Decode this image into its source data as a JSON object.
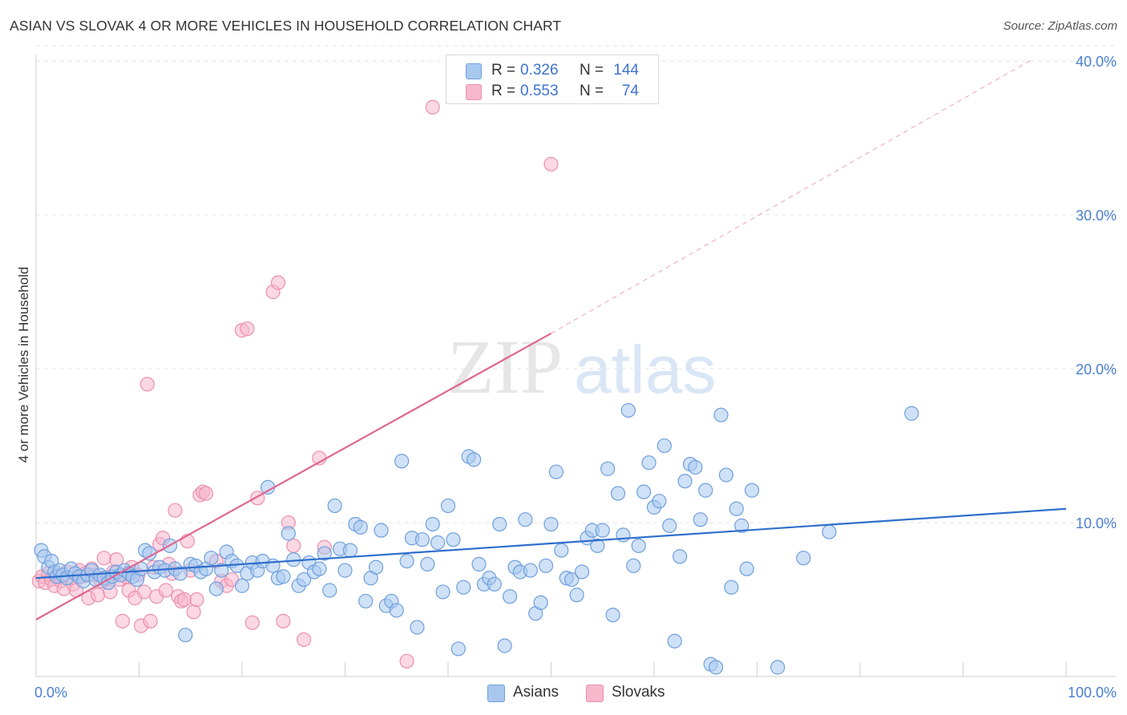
{
  "title": "ASIAN VS SLOVAK 4 OR MORE VEHICLES IN HOUSEHOLD CORRELATION CHART",
  "source": "Source: ZipAtlas.com",
  "watermark": {
    "zip": "ZIP",
    "atlas": "atlas"
  },
  "legend_top": [
    {
      "r_label": "R =",
      "r_value": "0.326",
      "n_label": "N =",
      "n_value": "144"
    },
    {
      "r_label": "R =",
      "r_value": "0.553",
      "n_label": "N =",
      "n_value": "74"
    }
  ],
  "legend_bottom": [
    "Asians",
    "Slovaks"
  ],
  "colors": {
    "asian_fill": "#a8c8f0",
    "asian_stroke": "#6f9fdc",
    "asian_line": "#2f6fcc",
    "slovak_fill": "#f7b8cc",
    "slovak_stroke": "#ec8fae",
    "slovak_line": "#e0668f",
    "tick_label": "#4a7fd0",
    "grid": "#e3e3e3"
  },
  "chart_data": {
    "type": "scatter",
    "title": "ASIAN VS SLOVAK 4 OR MORE VEHICLES IN HOUSEHOLD CORRELATION CHART",
    "xlabel": "",
    "ylabel": "4 or more Vehicles in Household",
    "xlim": [
      0,
      100
    ],
    "ylim": [
      0,
      41
    ],
    "x_tick_labels": [
      "0.0%",
      "100.0%"
    ],
    "y_ticks": [
      10,
      20,
      30,
      40
    ],
    "y_tick_labels": [
      "10.0%",
      "20.0%",
      "30.0%",
      "40.0%"
    ],
    "grid": "horizontal-dashed",
    "legend_position": "top-center",
    "series": [
      {
        "name": "Asians",
        "R": 0.326,
        "N": 144,
        "trend": {
          "x": [
            0,
            100
          ],
          "y": [
            6.4,
            10.9
          ],
          "style": "solid"
        },
        "points": [
          [
            0.5,
            8.2
          ],
          [
            0.8,
            7.8
          ],
          [
            1.2,
            7.1
          ],
          [
            1.5,
            7.5
          ],
          [
            1.8,
            6.8
          ],
          [
            2.0,
            6.5
          ],
          [
            2.3,
            6.9
          ],
          [
            2.6,
            6.6
          ],
          [
            3.0,
            6.4
          ],
          [
            3.4,
            7.0
          ],
          [
            3.8,
            6.7
          ],
          [
            4.2,
            6.5
          ],
          [
            4.6,
            6.2
          ],
          [
            5.0,
            6.6
          ],
          [
            5.4,
            6.9
          ],
          [
            5.8,
            6.3
          ],
          [
            6.2,
            6.6
          ],
          [
            6.6,
            6.4
          ],
          [
            7.0,
            6.1
          ],
          [
            7.4,
            6.5
          ],
          [
            7.8,
            6.8
          ],
          [
            8.2,
            6.6
          ],
          [
            8.6,
            6.9
          ],
          [
            9.0,
            6.7
          ],
          [
            9.4,
            6.5
          ],
          [
            9.8,
            6.3
          ],
          [
            10.2,
            7.0
          ],
          [
            10.6,
            8.2
          ],
          [
            11.0,
            8.0
          ],
          [
            11.5,
            6.8
          ],
          [
            12.0,
            7.1
          ],
          [
            12.5,
            6.9
          ],
          [
            13.0,
            8.5
          ],
          [
            13.5,
            7.0
          ],
          [
            14.0,
            6.7
          ],
          [
            14.5,
            2.7
          ],
          [
            15.0,
            7.3
          ],
          [
            15.5,
            7.2
          ],
          [
            16.0,
            6.8
          ],
          [
            16.5,
            7.0
          ],
          [
            17.0,
            7.7
          ],
          [
            17.5,
            5.7
          ],
          [
            18.0,
            6.9
          ],
          [
            18.5,
            8.1
          ],
          [
            19.0,
            7.5
          ],
          [
            19.5,
            7.2
          ],
          [
            20.0,
            5.9
          ],
          [
            20.5,
            6.7
          ],
          [
            21.0,
            7.4
          ],
          [
            21.5,
            6.9
          ],
          [
            22.0,
            7.5
          ],
          [
            22.5,
            12.3
          ],
          [
            23.0,
            7.2
          ],
          [
            23.5,
            6.4
          ],
          [
            24.0,
            6.5
          ],
          [
            24.5,
            9.3
          ],
          [
            25.0,
            7.6
          ],
          [
            25.5,
            5.9
          ],
          [
            26.0,
            6.3
          ],
          [
            26.5,
            7.4
          ],
          [
            27.0,
            6.8
          ],
          [
            27.5,
            7.0
          ],
          [
            28.0,
            8.0
          ],
          [
            28.5,
            5.6
          ],
          [
            29.0,
            11.1
          ],
          [
            29.5,
            8.3
          ],
          [
            30.0,
            6.9
          ],
          [
            30.5,
            8.2
          ],
          [
            31.0,
            9.9
          ],
          [
            31.5,
            9.7
          ],
          [
            32.0,
            4.9
          ],
          [
            32.5,
            6.4
          ],
          [
            33.0,
            7.1
          ],
          [
            33.5,
            9.5
          ],
          [
            34.0,
            4.6
          ],
          [
            34.5,
            4.9
          ],
          [
            35.0,
            4.3
          ],
          [
            35.5,
            14.0
          ],
          [
            36.0,
            7.5
          ],
          [
            36.5,
            9.0
          ],
          [
            37.0,
            3.2
          ],
          [
            37.5,
            8.9
          ],
          [
            38.0,
            7.3
          ],
          [
            38.5,
            9.9
          ],
          [
            39.0,
            8.7
          ],
          [
            39.5,
            5.5
          ],
          [
            40.0,
            11.1
          ],
          [
            40.5,
            8.9
          ],
          [
            41.0,
            1.8
          ],
          [
            41.5,
            5.8
          ],
          [
            42.0,
            14.3
          ],
          [
            42.5,
            14.1
          ],
          [
            43.0,
            7.3
          ],
          [
            43.5,
            6.0
          ],
          [
            44.0,
            6.4
          ],
          [
            44.5,
            6.0
          ],
          [
            45.0,
            9.9
          ],
          [
            45.5,
            2.0
          ],
          [
            46.0,
            5.2
          ],
          [
            46.5,
            7.1
          ],
          [
            47.0,
            6.8
          ],
          [
            47.5,
            10.2
          ],
          [
            48.0,
            6.9
          ],
          [
            48.5,
            4.1
          ],
          [
            49.0,
            4.8
          ],
          [
            49.5,
            7.2
          ],
          [
            50.0,
            9.9
          ],
          [
            50.5,
            13.3
          ],
          [
            51.0,
            8.2
          ],
          [
            51.5,
            6.4
          ],
          [
            52.0,
            6.3
          ],
          [
            52.5,
            5.3
          ],
          [
            53.0,
            6.8
          ],
          [
            53.5,
            9.0
          ],
          [
            54.0,
            9.5
          ],
          [
            54.5,
            8.5
          ],
          [
            55.0,
            9.5
          ],
          [
            55.5,
            13.5
          ],
          [
            56.0,
            4.0
          ],
          [
            56.5,
            11.9
          ],
          [
            57.0,
            9.2
          ],
          [
            57.5,
            17.3
          ],
          [
            58.0,
            7.2
          ],
          [
            58.5,
            8.5
          ],
          [
            59.0,
            12.0
          ],
          [
            59.5,
            13.9
          ],
          [
            60.0,
            11.0
          ],
          [
            60.5,
            11.4
          ],
          [
            61.0,
            15.0
          ],
          [
            61.5,
            9.8
          ],
          [
            62.0,
            2.3
          ],
          [
            62.5,
            7.8
          ],
          [
            63.0,
            12.7
          ],
          [
            63.5,
            13.8
          ],
          [
            64.0,
            13.6
          ],
          [
            64.5,
            10.2
          ],
          [
            65.0,
            12.1
          ],
          [
            65.5,
            0.8
          ],
          [
            66.0,
            0.6
          ],
          [
            66.5,
            17.0
          ],
          [
            67.0,
            13.1
          ],
          [
            67.5,
            5.8
          ],
          [
            68.0,
            10.9
          ],
          [
            68.5,
            9.8
          ],
          [
            69.0,
            7.0
          ],
          [
            69.5,
            12.1
          ],
          [
            72.0,
            0.6
          ],
          [
            74.5,
            7.7
          ],
          [
            77.0,
            9.4
          ],
          [
            85.0,
            17.1
          ]
        ]
      },
      {
        "name": "Slovaks",
        "R": 0.553,
        "N": 74,
        "trend": {
          "x": [
            0,
            50
          ],
          "y": [
            3.7,
            22.3
          ],
          "style": "solid",
          "extended_to": [
            100,
            40.8
          ],
          "extended_style": "dashed"
        },
        "points": [
          [
            0.3,
            6.2
          ],
          [
            0.6,
            6.5
          ],
          [
            0.9,
            6.1
          ],
          [
            1.2,
            6.7
          ],
          [
            1.5,
            6.3
          ],
          [
            1.8,
            5.9
          ],
          [
            2.1,
            6.6
          ],
          [
            2.4,
            6.2
          ],
          [
            2.7,
            5.7
          ],
          [
            3.0,
            6.8
          ],
          [
            3.3,
            6.4
          ],
          [
            3.6,
            6.0
          ],
          [
            3.9,
            5.6
          ],
          [
            4.2,
            6.9
          ],
          [
            4.5,
            6.5
          ],
          [
            4.8,
            6.7
          ],
          [
            5.1,
            5.1
          ],
          [
            5.4,
            7.0
          ],
          [
            5.7,
            6.6
          ],
          [
            6.0,
            5.3
          ],
          [
            6.3,
            6.2
          ],
          [
            6.6,
            7.7
          ],
          [
            6.9,
            6.4
          ],
          [
            7.2,
            5.5
          ],
          [
            7.5,
            6.8
          ],
          [
            7.8,
            7.6
          ],
          [
            8.1,
            6.3
          ],
          [
            8.4,
            3.6
          ],
          [
            8.7,
            6.5
          ],
          [
            9.0,
            5.6
          ],
          [
            9.3,
            7.1
          ],
          [
            9.6,
            5.1
          ],
          [
            9.9,
            6.6
          ],
          [
            10.2,
            3.3
          ],
          [
            10.5,
            5.5
          ],
          [
            10.8,
            19.0
          ],
          [
            11.1,
            3.6
          ],
          [
            11.4,
            7.1
          ],
          [
            11.7,
            5.2
          ],
          [
            12.0,
            8.6
          ],
          [
            12.3,
            9.0
          ],
          [
            12.6,
            5.6
          ],
          [
            12.9,
            7.3
          ],
          [
            13.2,
            6.7
          ],
          [
            13.5,
            10.8
          ],
          [
            13.8,
            5.2
          ],
          [
            14.1,
            4.9
          ],
          [
            14.4,
            5.0
          ],
          [
            14.7,
            8.8
          ],
          [
            15.0,
            6.9
          ],
          [
            15.3,
            4.2
          ],
          [
            15.6,
            5.0
          ],
          [
            15.9,
            11.8
          ],
          [
            16.2,
            12.0
          ],
          [
            16.5,
            11.9
          ],
          [
            17.5,
            7.5
          ],
          [
            18.0,
            6.2
          ],
          [
            18.5,
            5.9
          ],
          [
            19.0,
            6.3
          ],
          [
            20.0,
            22.5
          ],
          [
            20.5,
            22.6
          ],
          [
            21.0,
            3.5
          ],
          [
            21.5,
            11.6
          ],
          [
            23.0,
            25.0
          ],
          [
            23.5,
            25.6
          ],
          [
            24.0,
            3.6
          ],
          [
            24.5,
            10.0
          ],
          [
            25.0,
            8.5
          ],
          [
            26.0,
            2.4
          ],
          [
            27.5,
            14.2
          ],
          [
            28.0,
            8.4
          ],
          [
            36.0,
            1.0
          ],
          [
            38.5,
            37.0
          ],
          [
            50.0,
            33.3
          ]
        ]
      }
    ]
  }
}
